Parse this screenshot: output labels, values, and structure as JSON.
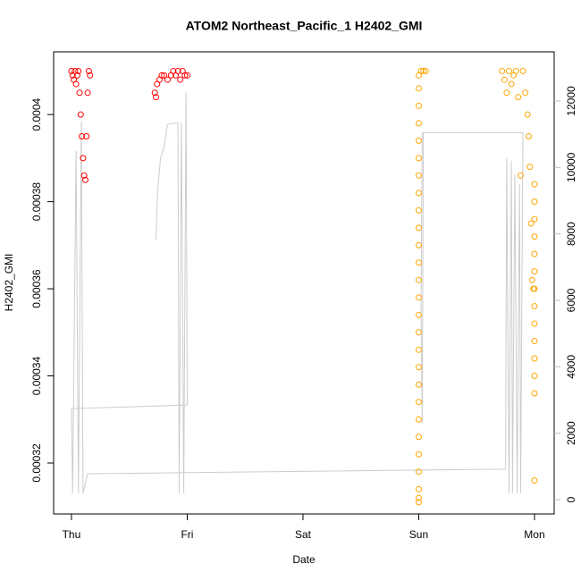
{
  "chart_data": {
    "type": "scatter",
    "title": "ATOM2 Northeast_Pacific_1 H2402_GMI",
    "xlabel": "Date",
    "ylabel": "H2402_GMI",
    "xlim": [
      -0.154,
      4.17
    ],
    "xticks": [
      {
        "value": 0,
        "label": "Thu"
      },
      {
        "value": 1,
        "label": "Fri"
      },
      {
        "value": 2,
        "label": "Sat"
      },
      {
        "value": 3,
        "label": "Sun"
      },
      {
        "value": 4,
        "label": "Mon"
      }
    ],
    "ylim": [
      0.0003083,
      0.0004144
    ],
    "yticks": [
      0.00032,
      0.00034,
      0.00036,
      0.00038,
      0.0004
    ],
    "y2lim": [
      -430,
      13480
    ],
    "y2ticks": [
      0,
      2000,
      4000,
      6000,
      8000,
      10000,
      12000
    ],
    "y2color": "#bdbdbd",
    "series": [
      {
        "mark": "line",
        "axis": "y2",
        "color": "#cccccc",
        "x": [
          0.73,
          0.745,
          0.77,
          0.8,
          0.83,
          0.92,
          0.93,
          0.95,
          0.97,
          0.99,
          1.0,
          0.0,
          0.01,
          0.04,
          0.06,
          0.085,
          0.1,
          0.14,
          3.75,
          3.76,
          3.78,
          3.8,
          3.81,
          3.83,
          3.85,
          3.87,
          3.88,
          3.9,
          3.9,
          3.03,
          3.02,
          3.03,
          3.04
        ],
        "values": [
          7820,
          9300,
          10300,
          10600,
          11300,
          11340,
          200,
          11340,
          200,
          12260,
          2850,
          2740,
          200,
          10500,
          200,
          11400,
          200,
          780,
          920,
          10300,
          200,
          10200,
          200,
          9800,
          200,
          9500,
          200,
          11050,
          11050,
          11050,
          5750,
          2300,
          11050
        ]
      },
      {
        "mark": "points",
        "color": "#ff0000",
        "x": [
          0.0,
          0.01,
          0.02,
          0.03,
          0.04,
          0.05,
          0.06,
          0.07,
          0.08,
          0.09,
          0.1,
          0.11,
          0.12,
          0.13,
          0.14,
          0.15,
          0.16,
          0.72,
          0.73,
          0.74,
          0.76,
          0.78,
          0.8,
          0.83,
          0.86,
          0.88,
          0.9,
          0.92,
          0.94,
          0.96,
          0.98,
          1.0
        ],
        "values": [
          0.00041,
          0.000409,
          0.000408,
          0.00041,
          0.000407,
          0.000409,
          0.00041,
          0.000405,
          0.0004,
          0.000395,
          0.00039,
          0.000386,
          0.000385,
          0.000395,
          0.000405,
          0.00041,
          0.000409,
          0.000405,
          0.000404,
          0.000407,
          0.000408,
          0.000409,
          0.000409,
          0.000408,
          0.000409,
          0.00041,
          0.000409,
          0.00041,
          0.000408,
          0.00041,
          0.000409,
          0.000409
        ]
      },
      {
        "mark": "points",
        "color": "#ffa500",
        "x": [
          3.0,
          3.0,
          3.0,
          3.0,
          3.0,
          3.0,
          3.0,
          3.0,
          3.0,
          3.0,
          3.0,
          3.0,
          3.0,
          3.0,
          3.0,
          3.0,
          3.0,
          3.0,
          3.0,
          3.0,
          3.0,
          3.0,
          3.0,
          3.0,
          3.0,
          3.0,
          3.0,
          3.02,
          3.04,
          3.06,
          3.72,
          3.74,
          3.76,
          3.78,
          3.8,
          3.82,
          3.84,
          3.86,
          3.88,
          3.9,
          3.92,
          3.94,
          3.95,
          3.96,
          3.97,
          3.98,
          3.99,
          4.0,
          4.0,
          4.0,
          4.0,
          4.0,
          4.0,
          4.0,
          4.0,
          4.0,
          4.0,
          4.0,
          4.0,
          4.0,
          4.0
        ],
        "values": [
          0.000311,
          0.000312,
          0.000314,
          0.000318,
          0.000322,
          0.000326,
          0.00033,
          0.000334,
          0.000338,
          0.000342,
          0.000346,
          0.00035,
          0.000354,
          0.000358,
          0.000362,
          0.000366,
          0.00037,
          0.000374,
          0.000378,
          0.000382,
          0.000386,
          0.00039,
          0.000394,
          0.000398,
          0.000402,
          0.000406,
          0.000409,
          0.00041,
          0.00041,
          0.00041,
          0.00041,
          0.000408,
          0.000405,
          0.00041,
          0.000407,
          0.000409,
          0.00041,
          0.000404,
          0.000386,
          0.00041,
          0.000405,
          0.0004,
          0.000395,
          0.000388,
          0.000375,
          0.000362,
          0.00036,
          0.000384,
          0.00038,
          0.000376,
          0.000372,
          0.000368,
          0.000364,
          0.00036,
          0.000356,
          0.000352,
          0.000348,
          0.000344,
          0.00034,
          0.000336,
          0.000316
        ]
      }
    ]
  }
}
